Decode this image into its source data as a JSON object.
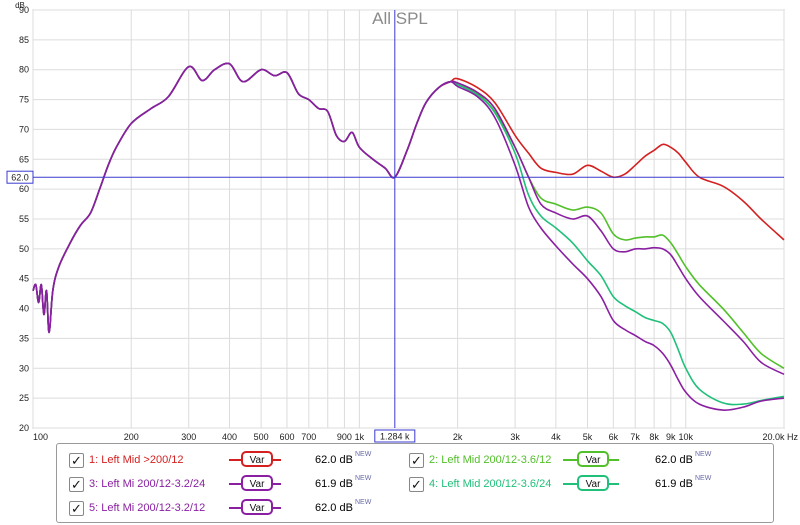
{
  "chart_data": {
    "type": "line",
    "title": "All SPL",
    "yunit": "dB",
    "xunit": "Hz",
    "xscale": "log",
    "xlim": [
      100,
      20000
    ],
    "ylim": [
      20,
      90
    ],
    "yticks": [
      20,
      25,
      30,
      35,
      40,
      45,
      50,
      55,
      60,
      65,
      70,
      75,
      80,
      85,
      90
    ],
    "xticks": [
      {
        "v": 100,
        "label": "100"
      },
      {
        "v": 200,
        "label": "200"
      },
      {
        "v": 300,
        "label": "300"
      },
      {
        "v": 400,
        "label": "400"
      },
      {
        "v": 500,
        "label": "500"
      },
      {
        "v": 600,
        "label": "600"
      },
      {
        "v": 700,
        "label": "700"
      },
      {
        "v": 900,
        "label": "900"
      },
      {
        "v": 1000,
        "label": "1k"
      },
      {
        "v": 2000,
        "label": "2k"
      },
      {
        "v": 3000,
        "label": "3k"
      },
      {
        "v": 4000,
        "label": "4k"
      },
      {
        "v": 5000,
        "label": "5k"
      },
      {
        "v": 6000,
        "label": "6k"
      },
      {
        "v": 7000,
        "label": "7k"
      },
      {
        "v": 8000,
        "label": "8k"
      },
      {
        "v": 9000,
        "label": "9k"
      },
      {
        "v": 10000,
        "label": "10k"
      },
      {
        "v": 20000,
        "label": "20.0k Hz"
      }
    ],
    "grid": true,
    "cursor": {
      "x": 1284,
      "xlabel": "1.284 k",
      "y": 62.0,
      "ylabel": "62.0"
    },
    "common": {
      "x": [
        100,
        102,
        104,
        106,
        108,
        110,
        112,
        115,
        120,
        130,
        140,
        150,
        160,
        170,
        180,
        200,
        230,
        260,
        300,
        330,
        360,
        400,
        440,
        500,
        550,
        600,
        650,
        700,
        750,
        800,
        850,
        900,
        950,
        1000,
        1100,
        1200,
        1284,
        1400,
        1500,
        1600,
        1750,
        1900
      ],
      "y": [
        43,
        44,
        41,
        44,
        39,
        43,
        36,
        43,
        47,
        51,
        54,
        56,
        60,
        64,
        67,
        71,
        73.5,
        75.5,
        80.5,
        78.2,
        80,
        81,
        78,
        80,
        79,
        79.5,
        76,
        75,
        73.5,
        73,
        69,
        68,
        69.5,
        67,
        65,
        63.5,
        62.0,
        66.5,
        71,
        74.5,
        77,
        78
      ]
    },
    "series": [
      {
        "name": "1: Left Mid >200/12",
        "color": "#d42020",
        "x": [
          2000,
          2300,
          2600,
          3000,
          3300,
          3600,
          4000,
          4500,
          5000,
          5500,
          6000,
          6500,
          7000,
          7500,
          8000,
          8500,
          9000,
          9500,
          10000,
          11000,
          13000,
          15000,
          17000,
          20000
        ],
        "y": [
          78.5,
          77,
          74.5,
          69,
          66,
          63.5,
          62.8,
          62.5,
          64,
          63,
          62,
          62.5,
          64,
          65.5,
          66.5,
          67.5,
          67,
          66,
          64.5,
          62,
          60.5,
          58,
          55,
          51.5
        ]
      },
      {
        "name": "2: Left Mid 200/12-3.6/12",
        "color": "#52c02a",
        "x": [
          2000,
          2300,
          2600,
          3000,
          3300,
          3600,
          4000,
          4500,
          5000,
          5500,
          6000,
          6500,
          7000,
          7500,
          8000,
          8500,
          9000,
          9500,
          10000,
          11000,
          13000,
          15000,
          17000,
          20000
        ],
        "y": [
          77.5,
          76,
          73,
          67,
          62,
          58.5,
          57.5,
          56.5,
          57,
          56,
          52.5,
          51.5,
          51.8,
          52,
          52,
          52.3,
          51,
          49,
          47,
          44,
          40,
          36,
          32.5,
          30
        ]
      },
      {
        "name": "3: Left Mi 200/12-3.2/24",
        "color": "#8a1fa2",
        "x": [
          2000,
          2300,
          2600,
          3000,
          3300,
          3600,
          4000,
          4500,
          5000,
          5500,
          6000,
          6500,
          7000,
          7500,
          8000,
          8500,
          9000,
          9500,
          10000,
          11000,
          13000,
          15000,
          17000,
          20000
        ],
        "y": [
          77.2,
          75.5,
          72,
          64,
          57,
          53.5,
          50.5,
          47.5,
          45,
          42,
          38,
          36.5,
          35.5,
          34.5,
          33.8,
          32.5,
          30.5,
          28,
          26,
          24,
          23,
          23.5,
          24.5,
          25
        ]
      },
      {
        "name": "4: Left Mid 200/12-3.6/24",
        "color": "#20c07a",
        "x": [
          2000,
          2300,
          2600,
          3000,
          3300,
          3600,
          4000,
          4500,
          5000,
          5500,
          6000,
          6500,
          7000,
          7500,
          8000,
          8500,
          9000,
          9500,
          10000,
          11000,
          13000,
          15000,
          17000,
          20000
        ],
        "y": [
          77.5,
          75.8,
          72.8,
          66,
          59,
          55.5,
          53.5,
          51,
          48,
          45.5,
          42,
          40.5,
          39.5,
          38.5,
          38,
          37.5,
          36,
          33,
          30,
          26.5,
          24.2,
          24,
          24.6,
          25.3
        ]
      },
      {
        "name": "5: Left Mi 200/12-3.2/12",
        "color": "#8a1fa2",
        "x": [
          2000,
          2300,
          2600,
          3000,
          3300,
          3600,
          4000,
          4500,
          5000,
          5500,
          6000,
          6500,
          7000,
          7500,
          8000,
          8500,
          9000,
          9500,
          10000,
          11000,
          13000,
          15000,
          17000,
          20000
        ],
        "y": [
          77.8,
          76.2,
          73.5,
          67,
          62,
          57.5,
          56,
          55,
          55.5,
          53,
          50,
          49.5,
          50,
          50,
          50.2,
          50,
          49,
          47,
          45,
          42,
          38,
          34.5,
          31,
          29
        ]
      }
    ]
  },
  "legend": {
    "items": [
      {
        "label": "1: Left Mid >200/12",
        "var_label": "Var",
        "value": "62.0 dB",
        "badge": "NEW",
        "color": "#d42020",
        "checked": "✓"
      },
      {
        "label": "2: Left Mid 200/12-3.6/12",
        "var_label": "Var",
        "value": "62.0 dB",
        "badge": "NEW",
        "color": "#52c02a",
        "checked": "✓"
      },
      {
        "label": "3: Left Mi 200/12-3.2/24",
        "var_label": "Var",
        "value": "61.9 dB",
        "badge": "NEW",
        "color": "#8a1fa2",
        "checked": "✓"
      },
      {
        "label": "4: Left Mid 200/12-3.6/24",
        "var_label": "Var",
        "value": "61.9 dB",
        "badge": "NEW",
        "color": "#20c07a",
        "checked": "✓"
      },
      {
        "label": "5: Left Mi 200/12-3.2/12",
        "var_label": "Var",
        "value": "62.0 dB",
        "badge": "NEW",
        "color": "#8a1fa2",
        "checked": "✓"
      }
    ]
  }
}
